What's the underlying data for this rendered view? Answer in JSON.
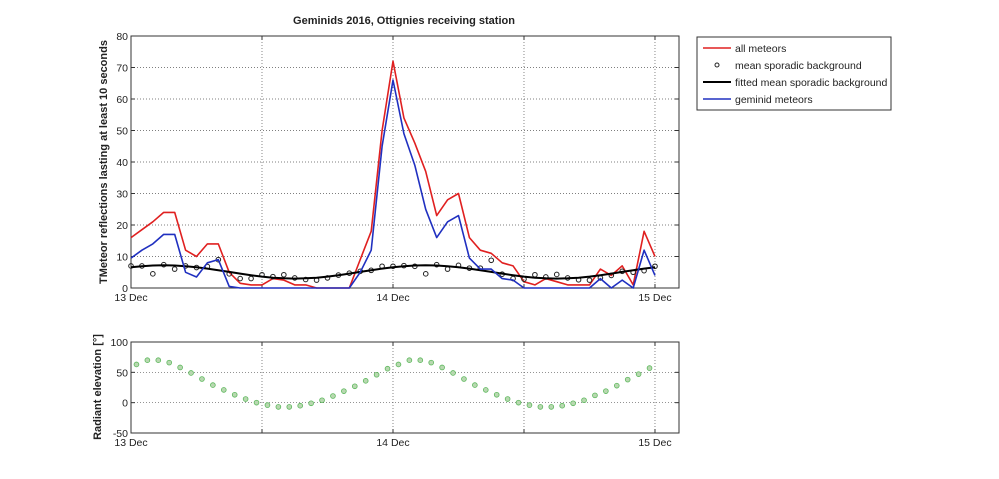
{
  "chart_data": [
    {
      "type": "line",
      "title": "Geminids 2016, Ottignies receiving station",
      "xlabel": "",
      "ylabel": "TMeteor reflections lasting at least 10 seconds",
      "ylim": [
        0,
        80
      ],
      "yticks": [
        0,
        10,
        20,
        30,
        40,
        50,
        60,
        70,
        80
      ],
      "xlim": [
        "13 Dec 00:00",
        "15 Dec 02:12"
      ],
      "xticks": [
        {
          "at": "13 Dec 00:00",
          "label": "13 Dec"
        },
        {
          "at": "13 Dec 12:00",
          "label": ""
        },
        {
          "at": "14 Dec 00:00",
          "label": "14 Dec"
        },
        {
          "at": "14 Dec 12:00",
          "label": ""
        },
        {
          "at": "15 Dec 00:00",
          "label": "15 Dec"
        }
      ],
      "grid": true,
      "legend_placement": "outside-top-right",
      "x": [
        "13 Dec 00:00",
        "13 Dec 01:00",
        "13 Dec 02:00",
        "13 Dec 03:00",
        "13 Dec 04:00",
        "13 Dec 05:00",
        "13 Dec 06:00",
        "13 Dec 07:00",
        "13 Dec 08:00",
        "13 Dec 09:00",
        "13 Dec 10:00",
        "13 Dec 11:00",
        "13 Dec 12:00",
        "13 Dec 13:00",
        "13 Dec 14:00",
        "13 Dec 15:00",
        "13 Dec 16:00",
        "13 Dec 17:00",
        "13 Dec 18:00",
        "13 Dec 19:00",
        "13 Dec 20:00",
        "13 Dec 21:00",
        "13 Dec 22:00",
        "13 Dec 23:00",
        "14 Dec 00:00",
        "14 Dec 01:00",
        "14 Dec 02:00",
        "14 Dec 03:00",
        "14 Dec 04:00",
        "14 Dec 05:00",
        "14 Dec 06:00",
        "14 Dec 07:00",
        "14 Dec 08:00",
        "14 Dec 09:00",
        "14 Dec 10:00",
        "14 Dec 11:00",
        "14 Dec 12:00",
        "14 Dec 13:00",
        "14 Dec 14:00",
        "14 Dec 15:00",
        "14 Dec 16:00",
        "14 Dec 17:00",
        "14 Dec 18:00",
        "14 Dec 19:00",
        "14 Dec 20:00",
        "14 Dec 21:00",
        "14 Dec 22:00",
        "14 Dec 23:00",
        "15 Dec 00:00"
      ],
      "series": [
        {
          "name": "all meteors",
          "style": "line",
          "color": "#e02020",
          "values": [
            16,
            18.5,
            21,
            24,
            24,
            12,
            10,
            14,
            14,
            5,
            1.5,
            1,
            1,
            3,
            2.5,
            1,
            1,
            0,
            0,
            0,
            0,
            9,
            18,
            50,
            72,
            54,
            46,
            37,
            23,
            28,
            30,
            16,
            12,
            11,
            8,
            7,
            2,
            1,
            3,
            2,
            1,
            1,
            1,
            6,
            4,
            7,
            1,
            18,
            10
          ]
        },
        {
          "name": "mean sporadic background",
          "style": "marker",
          "color": "#222222",
          "values": [
            7,
            7,
            4.5,
            7.4,
            6,
            7,
            6.5,
            6.8,
            9,
            4.5,
            3,
            3,
            4.2,
            3.6,
            4.2,
            3.2,
            2.7,
            2.5,
            3.2,
            4.1,
            4.7,
            5.3,
            5.6,
            6.9,
            6.9,
            7.1,
            6.9,
            4.5,
            7.4,
            6,
            7.2,
            6.3,
            6.3,
            8.8,
            4.4,
            3,
            2.8,
            4.2,
            3.5,
            4.3,
            3.2,
            2.6,
            2.5,
            3.2,
            4,
            5.3,
            5,
            5.5,
            6.9
          ]
        },
        {
          "name": "fitted mean sporadic background",
          "style": "line",
          "color": "#000000",
          "values": [
            6.58,
            6.92,
            7.13,
            7.2,
            7.13,
            6.92,
            6.58,
            6.15,
            5.64,
            5.1,
            4.56,
            4.05,
            3.62,
            3.28,
            3.07,
            3.0,
            3.07,
            3.28,
            3.62,
            4.05,
            4.56,
            5.1,
            5.64,
            6.15,
            6.58,
            6.92,
            7.13,
            7.2,
            7.13,
            6.92,
            6.58,
            6.15,
            5.64,
            5.1,
            4.56,
            4.05,
            3.62,
            3.28,
            3.07,
            3.0,
            3.07,
            3.28,
            3.62,
            4.05,
            4.56,
            5.1,
            5.64,
            6.15,
            6.58
          ]
        },
        {
          "name": "geminid meteors",
          "style": "line",
          "color": "#2030c0",
          "values": [
            9.5,
            12,
            14,
            17,
            17,
            5,
            3.5,
            8,
            9,
            0.5,
            0,
            0,
            0,
            0,
            0,
            0,
            0,
            0,
            0,
            0,
            0,
            5,
            12,
            45,
            66,
            49,
            39,
            25,
            16,
            21,
            23,
            9.5,
            6,
            6,
            3,
            2.5,
            0,
            0,
            0,
            0,
            0,
            0,
            0,
            3,
            0,
            2.5,
            0,
            12,
            4
          ]
        }
      ]
    },
    {
      "type": "scatter",
      "title": "",
      "xlabel": "",
      "ylabel": "Radiant elevation [°]",
      "ylim": [
        -50,
        100
      ],
      "yticks": [
        -50,
        0,
        50,
        100
      ],
      "xlim": [
        "13 Dec 00:00",
        "15 Dec 02:12"
      ],
      "xticks": [
        {
          "at": "13 Dec 00:00",
          "label": "13 Dec"
        },
        {
          "at": "13 Dec 12:00",
          "label": ""
        },
        {
          "at": "14 Dec 00:00",
          "label": "14 Dec"
        },
        {
          "at": "14 Dec 12:00",
          "label": ""
        },
        {
          "at": "15 Dec 00:00",
          "label": "15 Dec"
        }
      ],
      "grid": true,
      "marker_color": "#5cb85c",
      "x": [
        "13 Dec 00:30",
        "13 Dec 01:30",
        "13 Dec 02:30",
        "13 Dec 03:30",
        "13 Dec 04:30",
        "13 Dec 05:30",
        "13 Dec 06:30",
        "13 Dec 07:30",
        "13 Dec 08:30",
        "13 Dec 09:30",
        "13 Dec 10:30",
        "13 Dec 11:30",
        "13 Dec 12:30",
        "13 Dec 13:30",
        "13 Dec 14:30",
        "13 Dec 15:30",
        "13 Dec 16:30",
        "13 Dec 17:30",
        "13 Dec 18:30",
        "13 Dec 19:30",
        "13 Dec 20:30",
        "13 Dec 21:30",
        "13 Dec 22:30",
        "13 Dec 23:30",
        "14 Dec 00:30",
        "14 Dec 01:30",
        "14 Dec 02:30",
        "14 Dec 03:30",
        "14 Dec 04:30",
        "14 Dec 05:30",
        "14 Dec 06:30",
        "14 Dec 07:30",
        "14 Dec 08:30",
        "14 Dec 09:30",
        "14 Dec 10:30",
        "14 Dec 11:30",
        "14 Dec 12:30",
        "14 Dec 13:30",
        "14 Dec 14:30",
        "14 Dec 15:30",
        "14 Dec 16:30",
        "14 Dec 17:30",
        "14 Dec 18:30",
        "14 Dec 19:30",
        "14 Dec 20:30",
        "14 Dec 21:30",
        "14 Dec 22:30",
        "14 Dec 23:30"
      ],
      "values": [
        63,
        70,
        70,
        66,
        58,
        49,
        39,
        29,
        21,
        13,
        6,
        0,
        -4,
        -7,
        -7,
        -5,
        -1,
        4,
        11,
        19,
        27,
        36,
        46,
        56,
        63,
        70,
        70,
        66,
        58,
        49,
        39,
        29,
        21,
        13,
        6,
        0,
        -4,
        -7,
        -7,
        -5,
        -1,
        4,
        12,
        19,
        28,
        38,
        47,
        57
      ]
    }
  ]
}
